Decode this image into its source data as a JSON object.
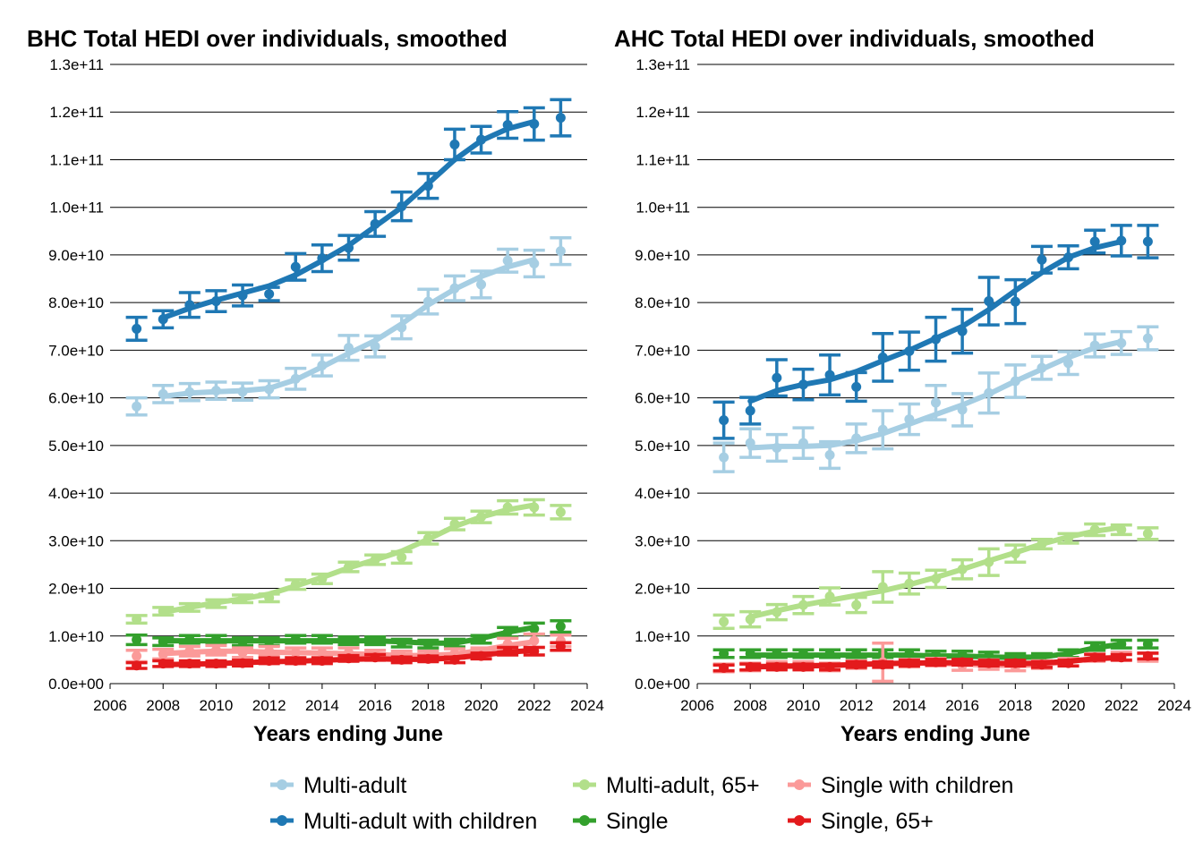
{
  "chart_data": [
    {
      "type": "line",
      "title": "BHC Total HEDI over individuals, smoothed",
      "xlabel": "Years ending June",
      "ylabel": "",
      "xlim": [
        2006,
        2024
      ],
      "ylim": [
        0,
        130000000000
      ],
      "x_ticks": [
        2006,
        2008,
        2010,
        2012,
        2014,
        2016,
        2018,
        2020,
        2022,
        2024
      ],
      "y_ticks": [
        0,
        10000000000,
        20000000000,
        30000000000,
        40000000000,
        50000000000,
        60000000000,
        70000000000,
        80000000000,
        90000000000,
        100000000000,
        110000000000,
        120000000000,
        130000000000
      ],
      "y_tick_labels": [
        "0.0e+00",
        "1.0e+10",
        "2.0e+10",
        "3.0e+10",
        "4.0e+10",
        "5.0e+10",
        "6.0e+10",
        "7.0e+10",
        "8.0e+10",
        "9.0e+10",
        "1.0e+11",
        "1.1e+11",
        "1.2e+11",
        "1.3e+11"
      ],
      "grid": "horizontal",
      "x": [
        2007,
        2008,
        2009,
        2010,
        2011,
        2012,
        2013,
        2014,
        2015,
        2016,
        2017,
        2018,
        2019,
        2020,
        2021,
        2022,
        2023
      ],
      "series": [
        {
          "name": "Multi-adult",
          "color": "#a6cee3",
          "values": [
            58.2,
            60.8,
            61.2,
            61.5,
            61.3,
            61.8,
            64.0,
            66.8,
            70.5,
            70.8,
            74.8,
            80.2,
            83.0,
            83.8,
            88.8,
            88.2,
            90.8
          ],
          "err": [
            1.8,
            1.8,
            1.8,
            1.8,
            1.8,
            1.8,
            2.2,
            2.2,
            2.6,
            2.2,
            2.4,
            2.6,
            2.6,
            2.8,
            2.4,
            2.8,
            2.8
          ],
          "smooth": [
            null,
            60.3,
            61.0,
            61.3,
            61.5,
            62.0,
            63.8,
            66.5,
            69.3,
            72.0,
            75.5,
            79.5,
            82.8,
            85.5,
            87.5,
            89.0,
            null
          ]
        },
        {
          "name": "Multi-adult with children",
          "color": "#1f78b4",
          "values": [
            74.5,
            76.5,
            79.5,
            80.3,
            81.5,
            81.8,
            87.5,
            89.3,
            91.5,
            96.5,
            100.2,
            104.5,
            113.2,
            114.2,
            117.3,
            117.5,
            118.8
          ],
          "err": [
            2.4,
            1.8,
            2.6,
            2.2,
            2.2,
            1.4,
            2.8,
            2.8,
            2.6,
            2.6,
            3.0,
            2.6,
            3.2,
            2.8,
            2.8,
            3.4,
            3.8
          ],
          "smooth": [
            null,
            76.8,
            78.8,
            80.5,
            82.0,
            83.5,
            85.8,
            88.8,
            92.0,
            96.0,
            100.0,
            105.0,
            110.0,
            114.0,
            116.5,
            118.0,
            null
          ]
        },
        {
          "name": "Multi-adult, 65+",
          "color": "#b2df8a",
          "values": [
            13.5,
            15.2,
            16.0,
            16.8,
            17.8,
            18.0,
            20.8,
            22.0,
            24.5,
            26.0,
            26.5,
            30.5,
            33.5,
            35.0,
            37.0,
            37.0,
            36.0
          ],
          "err": [
            0.8,
            0.8,
            0.8,
            0.8,
            0.8,
            0.8,
            1.0,
            1.0,
            1.0,
            1.0,
            1.2,
            1.2,
            1.2,
            1.2,
            1.4,
            1.6,
            1.4
          ],
          "smooth": [
            null,
            15.0,
            16.0,
            17.0,
            17.8,
            18.8,
            20.5,
            22.3,
            24.3,
            26.0,
            27.8,
            30.3,
            33.0,
            35.0,
            36.5,
            37.5,
            null
          ]
        },
        {
          "name": "Single",
          "color": "#33a02c",
          "values": [
            9.2,
            8.8,
            9.3,
            9.3,
            8.8,
            8.8,
            9.3,
            9.3,
            9.0,
            9.0,
            8.5,
            8.3,
            8.5,
            9.3,
            10.8,
            11.5,
            12.0
          ],
          "err": [
            1.0,
            0.8,
            0.8,
            0.8,
            0.8,
            0.8,
            0.8,
            0.8,
            0.8,
            0.8,
            0.8,
            0.8,
            0.8,
            0.8,
            1.0,
            1.2,
            1.2
          ],
          "smooth": [
            null,
            9.0,
            9.0,
            9.0,
            9.0,
            9.0,
            9.0,
            9.0,
            9.0,
            9.0,
            8.8,
            8.5,
            8.5,
            9.5,
            10.8,
            11.8,
            null
          ]
        },
        {
          "name": "Single with children",
          "color": "#fb9a99",
          "values": [
            5.8,
            6.2,
            6.8,
            7.0,
            6.5,
            6.8,
            6.5,
            6.5,
            6.5,
            6.0,
            5.8,
            5.8,
            6.3,
            6.5,
            8.3,
            9.0,
            9.0
          ],
          "err": [
            1.2,
            1.0,
            1.0,
            1.0,
            1.0,
            1.0,
            1.0,
            1.0,
            1.0,
            1.0,
            1.0,
            1.0,
            1.0,
            1.0,
            1.2,
            1.4,
            1.2
          ],
          "smooth": [
            null,
            6.3,
            6.6,
            6.8,
            6.8,
            6.6,
            6.5,
            6.4,
            6.3,
            6.1,
            5.9,
            5.9,
            6.2,
            7.0,
            8.0,
            8.8,
            null
          ]
        },
        {
          "name": "Single, 65+",
          "color": "#e31a1c",
          "values": [
            3.8,
            4.2,
            4.2,
            4.2,
            4.3,
            4.8,
            4.8,
            4.8,
            5.3,
            5.5,
            5.0,
            5.2,
            5.0,
            5.8,
            6.8,
            6.8,
            7.8
          ],
          "err": [
            0.6,
            0.6,
            0.6,
            0.6,
            0.6,
            0.6,
            0.6,
            0.6,
            0.6,
            0.6,
            0.6,
            0.6,
            0.6,
            0.6,
            0.8,
            0.8,
            0.8
          ],
          "smooth": [
            null,
            4.0,
            4.1,
            4.2,
            4.4,
            4.6,
            4.7,
            4.9,
            5.1,
            5.2,
            5.1,
            5.1,
            5.4,
            6.0,
            6.6,
            7.0,
            null
          ]
        }
      ]
    },
    {
      "type": "line",
      "title": "AHC Total HEDI over individuals, smoothed",
      "xlabel": "Years ending June",
      "ylabel": "",
      "xlim": [
        2006,
        2024
      ],
      "ylim": [
        0,
        130000000000
      ],
      "x_ticks": [
        2006,
        2008,
        2010,
        2012,
        2014,
        2016,
        2018,
        2020,
        2022,
        2024
      ],
      "y_ticks": [
        0,
        10000000000,
        20000000000,
        30000000000,
        40000000000,
        50000000000,
        60000000000,
        70000000000,
        80000000000,
        90000000000,
        100000000000,
        110000000000,
        120000000000,
        130000000000
      ],
      "y_tick_labels": [
        "0.0e+00",
        "1.0e+10",
        "2.0e+10",
        "3.0e+10",
        "4.0e+10",
        "5.0e+10",
        "6.0e+10",
        "7.0e+10",
        "8.0e+10",
        "9.0e+10",
        "1.0e+11",
        "1.1e+11",
        "1.2e+11",
        "1.3e+11"
      ],
      "grid": "horizontal",
      "x": [
        2007,
        2008,
        2009,
        2010,
        2011,
        2012,
        2013,
        2014,
        2015,
        2016,
        2017,
        2018,
        2019,
        2020,
        2021,
        2022,
        2023
      ],
      "series": [
        {
          "name": "Multi-adult",
          "color": "#a6cee3",
          "values": [
            47.5,
            50.5,
            49.5,
            50.5,
            48.0,
            51.5,
            53.3,
            55.5,
            59.0,
            57.5,
            61.0,
            63.5,
            66.3,
            67.3,
            71.0,
            71.5,
            72.5
          ],
          "err": [
            3.0,
            3.0,
            2.8,
            3.2,
            2.8,
            3.0,
            4.0,
            3.2,
            3.6,
            3.4,
            4.2,
            3.4,
            2.4,
            2.4,
            2.4,
            2.4,
            2.4
          ],
          "smooth": [
            null,
            49.5,
            49.8,
            49.8,
            50.0,
            51.0,
            52.5,
            54.5,
            56.5,
            58.5,
            60.8,
            63.5,
            66.0,
            68.5,
            70.5,
            71.8,
            null
          ]
        },
        {
          "name": "Multi-adult with children",
          "color": "#1f78b4",
          "values": [
            55.3,
            57.3,
            64.2,
            62.8,
            64.8,
            62.3,
            68.5,
            69.8,
            72.3,
            74.0,
            80.3,
            80.2,
            89.0,
            89.5,
            92.8,
            93.0,
            92.8
          ],
          "err": [
            3.8,
            2.8,
            3.8,
            3.2,
            4.2,
            3.0,
            5.0,
            4.0,
            4.6,
            4.6,
            5.0,
            4.6,
            2.8,
            2.4,
            2.4,
            3.2,
            3.4
          ],
          "smooth": [
            null,
            59.3,
            61.5,
            62.8,
            63.8,
            65.5,
            67.8,
            70.0,
            72.5,
            75.0,
            78.5,
            82.5,
            86.3,
            89.5,
            91.5,
            92.8,
            null
          ]
        },
        {
          "name": "Multi-adult, 65+",
          "color": "#b2df8a",
          "values": [
            13.0,
            13.5,
            15.0,
            16.5,
            18.3,
            16.5,
            20.3,
            21.0,
            22.0,
            24.0,
            25.5,
            27.3,
            29.3,
            30.5,
            32.3,
            32.3,
            31.5
          ],
          "err": [
            1.4,
            1.6,
            1.6,
            1.8,
            1.8,
            1.6,
            3.2,
            2.2,
            1.8,
            2.0,
            2.8,
            1.8,
            1.0,
            1.0,
            1.2,
            1.0,
            1.2
          ],
          "smooth": [
            null,
            14.0,
            15.3,
            16.5,
            17.5,
            18.5,
            19.5,
            20.8,
            22.3,
            24.0,
            25.8,
            27.5,
            29.3,
            30.8,
            32.0,
            32.8,
            null
          ]
        },
        {
          "name": "Single",
          "color": "#33a02c",
          "values": [
            6.3,
            6.3,
            6.3,
            6.3,
            6.3,
            6.3,
            6.3,
            6.3,
            6.0,
            6.0,
            5.8,
            5.5,
            5.5,
            6.3,
            7.8,
            8.3,
            8.3
          ],
          "err": [
            0.8,
            0.8,
            0.8,
            0.8,
            0.8,
            0.8,
            0.8,
            0.8,
            0.8,
            0.8,
            0.8,
            0.8,
            0.8,
            0.8,
            0.8,
            0.8,
            0.8
          ],
          "smooth": [
            null,
            6.0,
            6.0,
            6.0,
            6.0,
            6.0,
            6.0,
            6.0,
            5.8,
            5.8,
            5.6,
            5.5,
            5.6,
            6.3,
            7.5,
            8.3,
            null
          ]
        },
        {
          "name": "Single with children",
          "color": "#fb9a99",
          "values": [
            3.3,
            3.5,
            3.8,
            3.8,
            3.5,
            4.0,
            4.5,
            4.3,
            4.5,
            3.8,
            4.0,
            3.5,
            4.0,
            4.5,
            5.5,
            5.8,
            5.5
          ],
          "err": [
            0.8,
            0.8,
            0.8,
            0.8,
            0.8,
            0.8,
            4.0,
            0.8,
            0.8,
            1.0,
            1.0,
            0.8,
            0.8,
            0.8,
            0.8,
            0.8,
            0.8
          ],
          "smooth": [
            null,
            3.6,
            3.7,
            3.8,
            3.9,
            4.0,
            4.2,
            4.3,
            4.3,
            4.1,
            3.9,
            3.8,
            4.0,
            4.6,
            5.3,
            5.6,
            null
          ]
        },
        {
          "name": "Single, 65+",
          "color": "#e31a1c",
          "values": [
            3.3,
            3.5,
            3.5,
            3.5,
            3.5,
            4.0,
            4.0,
            4.3,
            4.5,
            4.5,
            4.3,
            4.3,
            4.0,
            4.3,
            5.5,
            5.5,
            5.8
          ],
          "err": [
            0.6,
            0.6,
            0.6,
            0.6,
            0.6,
            0.6,
            0.6,
            0.6,
            0.6,
            0.6,
            0.6,
            0.6,
            0.6,
            0.6,
            0.6,
            0.6,
            0.6
          ],
          "smooth": [
            null,
            3.5,
            3.6,
            3.7,
            3.8,
            4.0,
            4.2,
            4.3,
            4.4,
            4.4,
            4.3,
            4.2,
            4.3,
            4.7,
            5.2,
            5.5,
            null
          ]
        }
      ]
    }
  ],
  "legend": {
    "position": "bottom",
    "items": [
      {
        "name": "Multi-adult",
        "color": "#a6cee3"
      },
      {
        "name": "Multi-adult with children",
        "color": "#1f78b4"
      },
      {
        "name": "Multi-adult, 65+",
        "color": "#b2df8a"
      },
      {
        "name": "Single",
        "color": "#33a02c"
      },
      {
        "name": "Single with children",
        "color": "#fb9a99"
      },
      {
        "name": "Single, 65+",
        "color": "#e31a1c"
      }
    ]
  }
}
